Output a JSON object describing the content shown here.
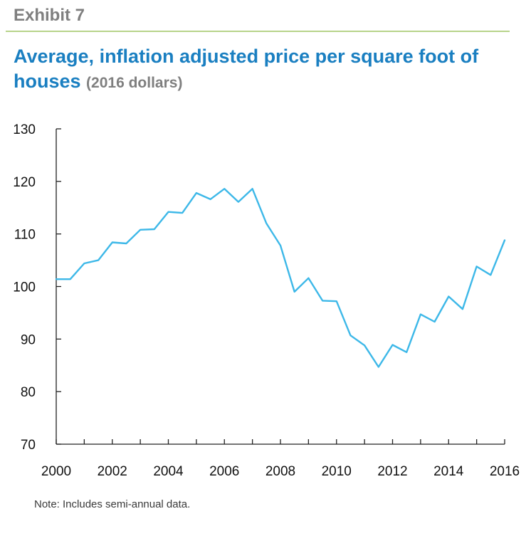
{
  "header": {
    "exhibit": "Exhibit 7",
    "title_main": "Average, inflation adjusted price per square foot of houses",
    "title_sub": "(2016 dollars)"
  },
  "note": "Note: Includes semi-annual data.",
  "colors": {
    "line": "#3db8e8",
    "title": "#1a7fc1",
    "rule": "#b7d38a",
    "axis": "#222222"
  },
  "chart_data": {
    "type": "line",
    "title": "Average, inflation adjusted price per square foot of houses (2016 dollars)",
    "xlabel": "",
    "ylabel": "",
    "xlim": [
      2000,
      2016
    ],
    "ylim": [
      70,
      130
    ],
    "yticks": [
      70,
      80,
      90,
      100,
      110,
      120,
      130
    ],
    "xtick_labels": [
      2000,
      2002,
      2004,
      2006,
      2008,
      2010,
      2012,
      2014,
      2016
    ],
    "grid": false,
    "series": [
      {
        "x": [
          2000,
          2000.5,
          2001,
          2001.5,
          2002,
          2002.5,
          2003,
          2003.5,
          2004,
          2004.5,
          2005,
          2005.5,
          2006,
          2006.5,
          2007,
          2007.5,
          2008,
          2008.5,
          2009,
          2009.5,
          2010,
          2010.5,
          2011,
          2011.5,
          2012,
          2012.5,
          2013,
          2013.5,
          2014,
          2014.5,
          2015,
          2015.5,
          2016
        ],
        "values": [
          101.4,
          101.4,
          104.4,
          105.0,
          108.4,
          108.2,
          110.8,
          110.9,
          114.2,
          114.0,
          117.8,
          116.6,
          118.6,
          116.1,
          118.6,
          112.0,
          107.8,
          99.0,
          101.6,
          97.3,
          97.2,
          90.7,
          88.8,
          84.7,
          88.9,
          87.5,
          94.7,
          93.3,
          98.1,
          95.7,
          103.8,
          102.2,
          108.8
        ]
      }
    ]
  }
}
